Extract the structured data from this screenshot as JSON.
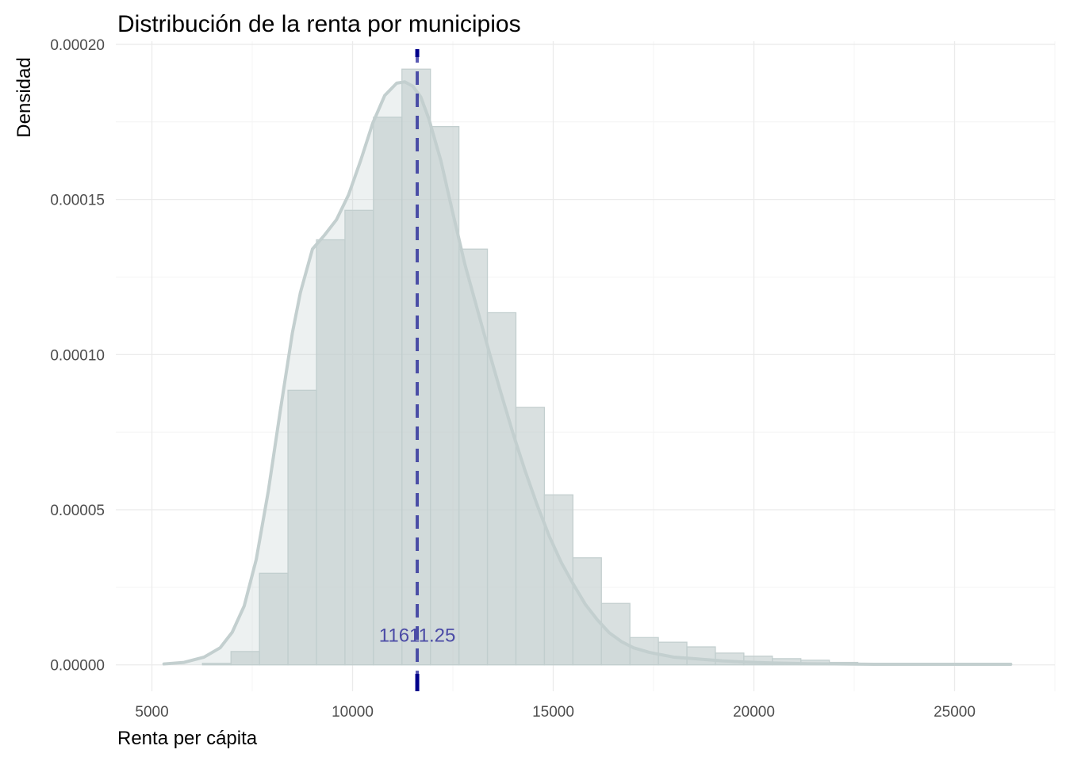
{
  "chart_data": {
    "type": "histogram",
    "title": "Distribución de la renta por municipios",
    "xlabel": "Renta per cápita",
    "ylabel": "Densidad",
    "xlim": [
      4100,
      27500
    ],
    "ylim": [
      -8.5e-06,
      0.000201
    ],
    "x_ticks": [
      5000,
      10000,
      15000,
      20000,
      25000
    ],
    "x_tick_labels": [
      "5000",
      "10000",
      "15000",
      "20000",
      "25000"
    ],
    "y_ticks": [
      0,
      5e-05,
      0.0001,
      0.00015,
      0.0002
    ],
    "y_tick_labels": [
      "0.00000",
      "0.00005",
      "0.00010",
      "0.00015",
      "0.00020"
    ],
    "grid": true,
    "bin_width": 710,
    "bins": [
      {
        "x0": 6260,
        "x1": 6970,
        "density": 5e-07
      },
      {
        "x0": 6970,
        "x1": 7680,
        "density": 4.3e-06
      },
      {
        "x0": 7680,
        "x1": 8390,
        "density": 2.95e-05
      },
      {
        "x0": 8390,
        "x1": 9100,
        "density": 8.85e-05
      },
      {
        "x0": 9100,
        "x1": 9810,
        "density": 0.000137
      },
      {
        "x0": 9810,
        "x1": 10520,
        "density": 0.0001465
      },
      {
        "x0": 10520,
        "x1": 11230,
        "density": 0.0001765
      },
      {
        "x0": 11230,
        "x1": 11940,
        "density": 0.000192
      },
      {
        "x0": 11940,
        "x1": 12650,
        "density": 0.0001735
      },
      {
        "x0": 12650,
        "x1": 13360,
        "density": 0.000134
      },
      {
        "x0": 13360,
        "x1": 14070,
        "density": 0.0001135
      },
      {
        "x0": 14070,
        "x1": 14780,
        "density": 8.3e-05
      },
      {
        "x0": 14780,
        "x1": 15490,
        "density": 5.48e-05
      },
      {
        "x0": 15490,
        "x1": 16200,
        "density": 3.45e-05
      },
      {
        "x0": 16200,
        "x1": 16910,
        "density": 1.98e-05
      },
      {
        "x0": 16910,
        "x1": 17620,
        "density": 8.8e-06
      },
      {
        "x0": 17620,
        "x1": 18330,
        "density": 7.3e-06
      },
      {
        "x0": 18330,
        "x1": 19040,
        "density": 5.8e-06
      },
      {
        "x0": 19040,
        "x1": 19750,
        "density": 3.8e-06
      },
      {
        "x0": 19750,
        "x1": 20460,
        "density": 2.8e-06
      },
      {
        "x0": 20460,
        "x1": 21170,
        "density": 2e-06
      },
      {
        "x0": 21170,
        "x1": 21880,
        "density": 1.5e-06
      },
      {
        "x0": 21880,
        "x1": 22590,
        "density": 8e-07
      },
      {
        "x0": 22590,
        "x1": 23300,
        "density": 5e-07
      },
      {
        "x0": 23300,
        "x1": 24010,
        "density": 5e-07
      },
      {
        "x0": 24010,
        "x1": 24720,
        "density": 3e-07
      },
      {
        "x0": 24720,
        "x1": 25430,
        "density": 3e-07
      },
      {
        "x0": 25430,
        "x1": 26140,
        "density": 2e-07
      }
    ],
    "density_curve": {
      "x": [
        5300,
        5800,
        6300,
        6700,
        7000,
        7300,
        7600,
        7900,
        8200,
        8500,
        8700,
        9000,
        9300,
        9600,
        9900,
        10200,
        10500,
        10800,
        11100,
        11300,
        11500,
        11700,
        11900,
        12200,
        12500,
        12800,
        13100,
        13400,
        13700,
        14000,
        14300,
        14600,
        14900,
        15200,
        15500,
        15800,
        16100,
        16400,
        16700,
        17000,
        17400,
        18000,
        18600,
        19200,
        19800,
        20500,
        21200,
        22000,
        23000,
        24000,
        25000,
        26400
      ],
      "y": [
        3e-07,
        8e-07,
        2.5e-06,
        5.5e-06,
        1.05e-05,
        1.9e-05,
        3.4e-05,
        5.6e-05,
        8.2e-05,
        0.000107,
        0.00012,
        0.000134,
        0.0001385,
        0.0001435,
        0.0001515,
        0.0001625,
        0.0001745,
        0.0001835,
        0.0001875,
        0.0001879,
        0.0001865,
        0.000183,
        0.000176,
        0.0001625,
        0.0001455,
        0.000129,
        0.000115,
        0.000101,
        8.75e-05,
        7.45e-05,
        6.25e-05,
        5.15e-05,
        4.15e-05,
        3.3e-05,
        2.6e-05,
        1.95e-05,
        1.45e-05,
        1.03e-05,
        7.5e-06,
        5.5e-06,
        4e-06,
        2.5e-06,
        1.9e-06,
        1.3e-06,
        9e-07,
        6e-07,
        4e-07,
        3e-07,
        2e-07,
        2e-07,
        2e-07,
        2e-07
      ]
    },
    "mean_line": {
      "x": 11611.25,
      "label": "11611.25",
      "annotation_y": 9.5e-06
    },
    "colors": {
      "bar_fill": "#bfcccc",
      "bar_fill_opacity": 0.6,
      "bar_stroke": "#c3cfcf",
      "curve": "#c3cfcf",
      "mean_line": "#00008b",
      "annotation": "#4b4ba6",
      "grid_major": "#ebebeb",
      "grid_minor": "#f4f4f4"
    }
  }
}
